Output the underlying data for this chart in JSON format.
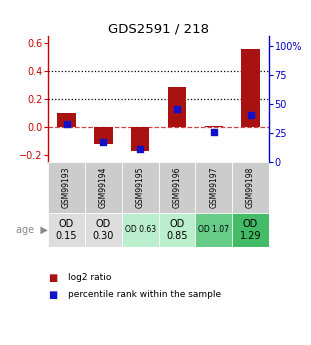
{
  "title": "GDS2591 / 218",
  "samples": [
    "GSM99193",
    "GSM99194",
    "GSM99195",
    "GSM99196",
    "GSM99197",
    "GSM99198"
  ],
  "log2_ratio": [
    0.1,
    -0.12,
    -0.17,
    0.29,
    0.01,
    0.56
  ],
  "percentile_rank": [
    0.33,
    0.18,
    0.12,
    0.46,
    0.26,
    0.41
  ],
  "age_labels": [
    "OD\n0.15",
    "OD\n0.30",
    "OD 0.63",
    "OD\n0.85",
    "OD 1.07",
    "OD\n1.29"
  ],
  "age_fontsize_large": [
    true,
    true,
    false,
    true,
    false,
    true
  ],
  "age_bg_colors": [
    "#dddddd",
    "#dddddd",
    "#bbeecc",
    "#bbeecc",
    "#66cc88",
    "#44bb66"
  ],
  "ylim_left": [
    -0.25,
    0.65
  ],
  "ylim_right": [
    0,
    1.0833
  ],
  "yticks_left": [
    -0.2,
    0.0,
    0.2,
    0.4,
    0.6
  ],
  "yticks_right_vals": [
    0,
    0.25,
    0.5,
    0.75,
    1.0
  ],
  "yticks_right_labels": [
    "0",
    "25",
    "50",
    "75",
    "100%"
  ],
  "bar_color": "#aa1111",
  "dot_color": "#1111cc",
  "hline_y": 0.0,
  "dotted_lines": [
    0.2,
    0.4
  ],
  "background_color": "#ffffff",
  "legend_red_label": "log2 ratio",
  "legend_blue_label": "percentile rank within the sample",
  "age_row_label": "age",
  "left_axis_color": "#cc0000",
  "right_axis_color": "#0000cc"
}
